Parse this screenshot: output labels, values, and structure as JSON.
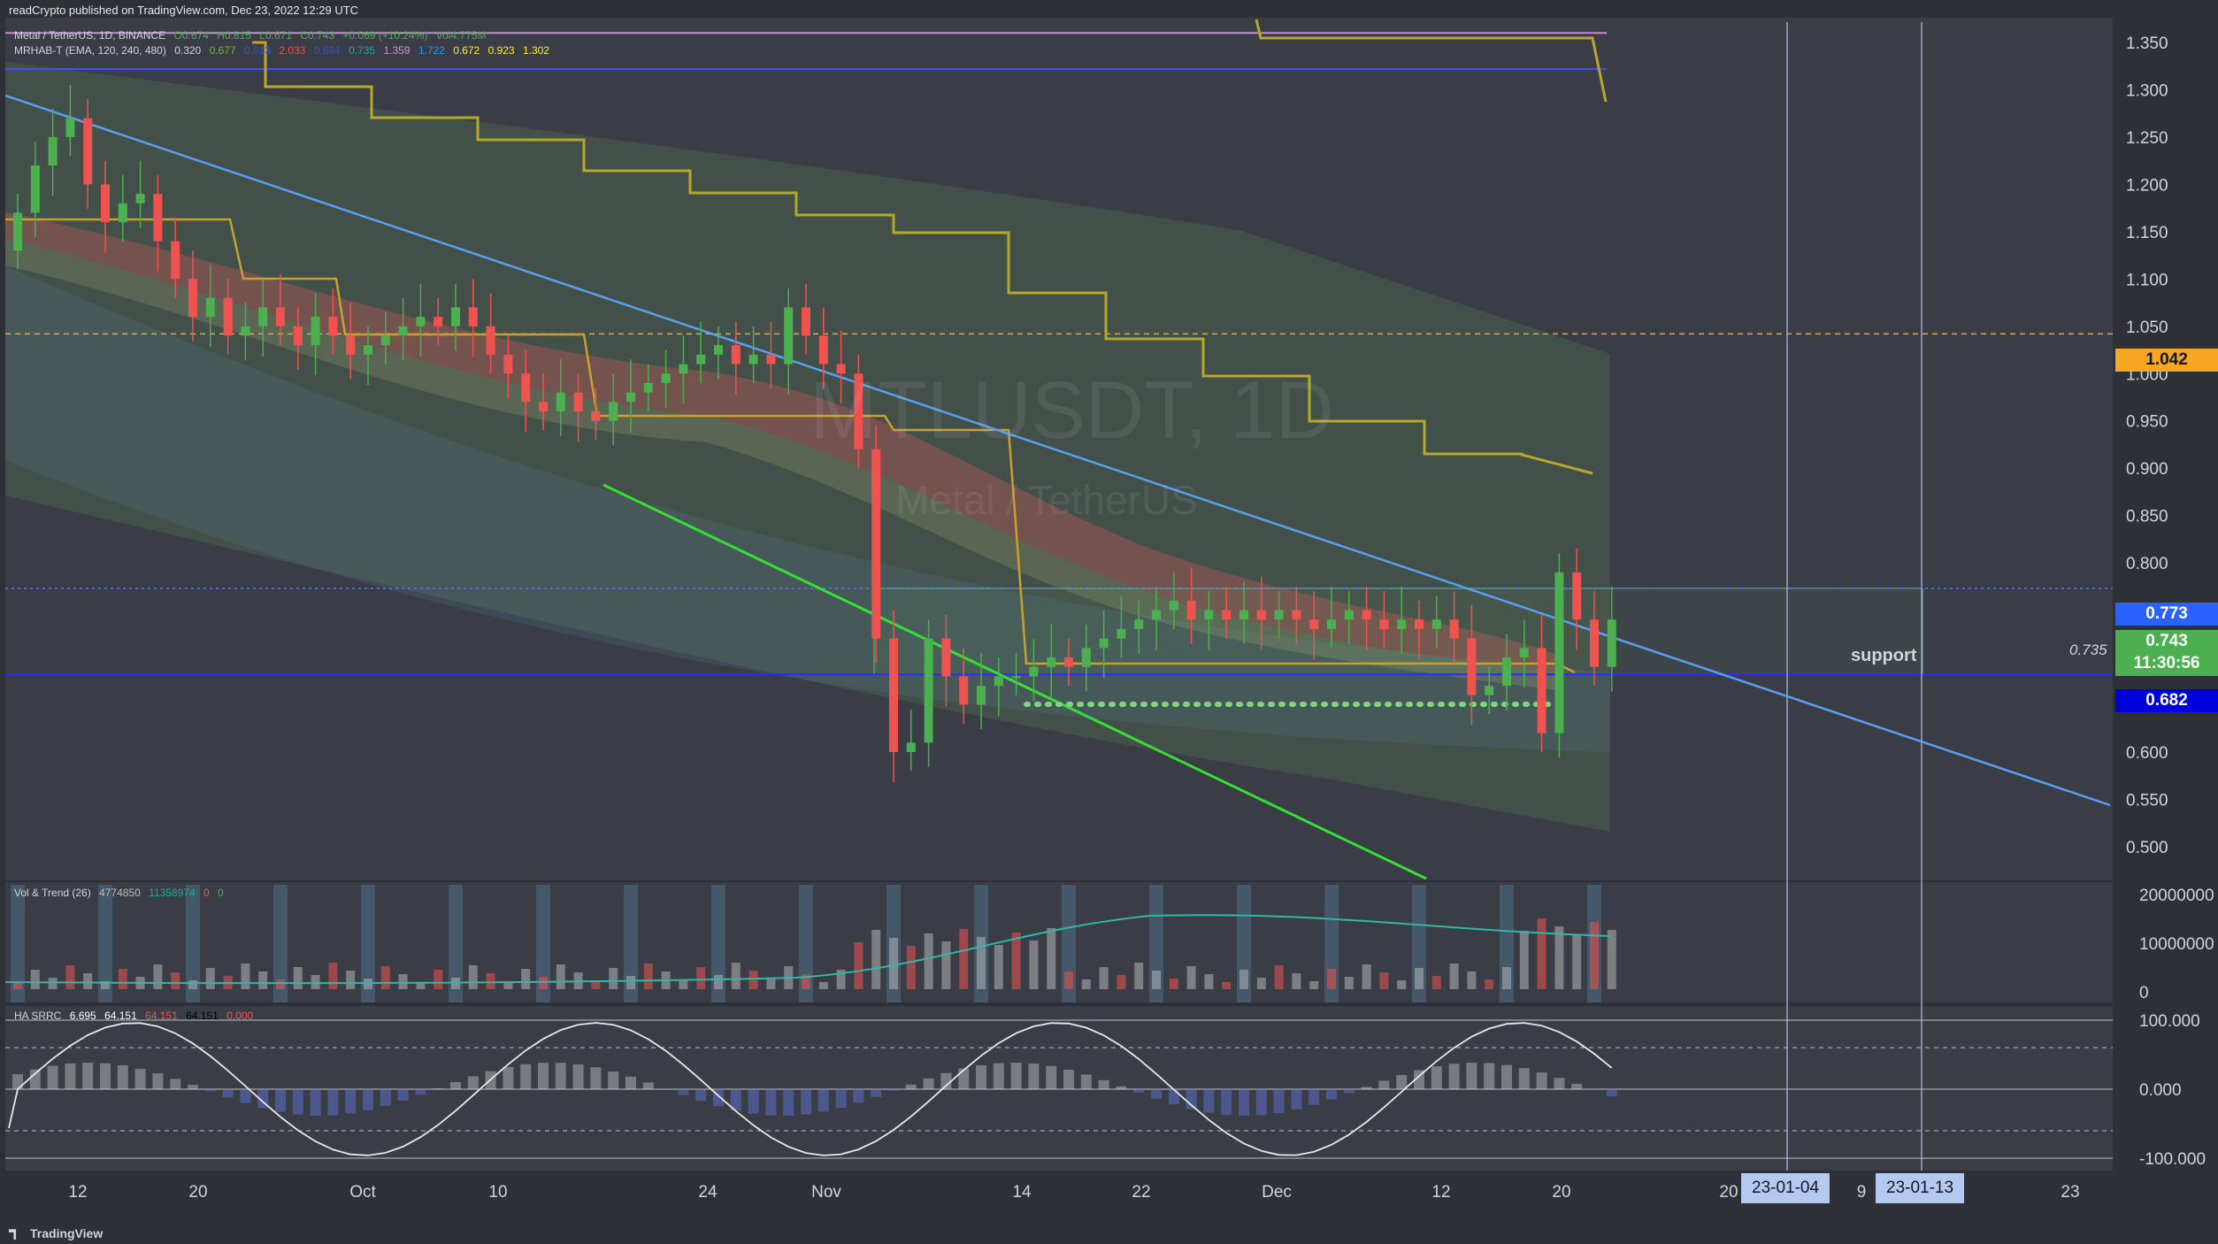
{
  "header": {
    "published_by": "readCrypto published on TradingView.com, Dec 23, 2022 12:29 UTC"
  },
  "symbol_line": {
    "name": "Metal / TetherUS, 1D, BINANCE",
    "open": "O0.674",
    "high": "H0.815",
    "low": "L0.671",
    "close": "C0.743",
    "change": "+0.069 (+10.24%)",
    "vol": "Vol4.775M"
  },
  "mrhab_line": {
    "name": "MRHAB-T (EMA, 120, 240, 480)",
    "values": [
      "0.320",
      "0.677",
      "0.813",
      "2.033",
      "0.694",
      "0.735",
      "1.359",
      "1.722",
      "0.672",
      "0.923",
      "1.302"
    ]
  },
  "watermark": {
    "symbol": "MTLUSDT, 1D",
    "description": "Metal / TetherUS"
  },
  "support_label": "support",
  "current_price": "0.743",
  "countdown": "11:30:56",
  "price_tags": [
    {
      "value": "1.042",
      "color": "#f5a623"
    },
    {
      "value": "0.773",
      "color": "#2962ff"
    },
    {
      "value": "0.682",
      "color": "#0000dd"
    }
  ],
  "annotation_value": "0.735",
  "main_axis": {
    "ticks": [
      "1.350",
      "1.300",
      "1.250",
      "1.200",
      "1.150",
      "1.100",
      "1.050",
      "1.000",
      "0.950",
      "0.900",
      "0.850",
      "0.800",
      "0.750",
      "0.700",
      "0.650",
      "0.600",
      "0.550",
      "0.500"
    ]
  },
  "volume_panel": {
    "label": "Vol & Trend (26)",
    "val1": "4774850",
    "val2": "11358974",
    "val3": "0",
    "val4": "0",
    "ticks": [
      "20000000",
      "10000000",
      "0"
    ]
  },
  "srrc_panel": {
    "label": "HA SRRC",
    "values": [
      "6.695",
      "64.151",
      "64.151",
      "64.151",
      "0.000"
    ],
    "ticks": [
      "100.000",
      "0.000",
      "-100.000"
    ]
  },
  "time_axis": {
    "labels": [
      "12",
      "20",
      "Oct",
      "10",
      "24",
      "Nov",
      "14",
      "22",
      "Dec",
      "12",
      "20",
      "20",
      "9",
      "23"
    ]
  },
  "date_tags": [
    "23-01-04",
    "23-01-13"
  ],
  "footer": "TradingView",
  "chart_data": {
    "type": "candlestick",
    "title": "MTLUSDT, 1D",
    "subtitle": "Metal / TetherUS",
    "ylim": [
      0.5,
      1.375
    ],
    "y_ticks": [
      1.35,
      1.3,
      1.25,
      1.2,
      1.15,
      1.1,
      1.05,
      1.0,
      0.95,
      0.9,
      0.85,
      0.8,
      0.75,
      0.7,
      0.65,
      0.6,
      0.55,
      0.5
    ],
    "x_labels": [
      "12",
      "20",
      "Oct",
      "10",
      "24",
      "Nov",
      "14",
      "22",
      "Dec",
      "12",
      "20",
      "20",
      "9",
      "23"
    ],
    "horizontal_levels": [
      1.36,
      1.322,
      1.042,
      0.773,
      0.682
    ],
    "support_zone": [
      0.682,
      0.773
    ],
    "candles_close_approx": [
      1.17,
      1.22,
      1.25,
      1.27,
      1.2,
      1.16,
      1.18,
      1.19,
      1.14,
      1.1,
      1.06,
      1.08,
      1.04,
      1.05,
      1.07,
      1.05,
      1.03,
      1.06,
      1.04,
      1.02,
      1.03,
      1.04,
      1.05,
      1.06,
      1.05,
      1.07,
      1.05,
      1.02,
      1.0,
      0.97,
      0.96,
      0.98,
      0.96,
      0.95,
      0.97,
      0.98,
      0.99,
      1.0,
      1.01,
      1.02,
      1.03,
      1.01,
      1.02,
      1.01,
      1.07,
      1.04,
      1.01,
      1.0,
      0.92,
      0.72,
      0.6,
      0.61,
      0.72,
      0.68,
      0.65,
      0.67,
      0.68,
      0.68,
      0.69,
      0.7,
      0.69,
      0.71,
      0.72,
      0.73,
      0.74,
      0.75,
      0.76,
      0.74,
      0.75,
      0.74,
      0.75,
      0.74,
      0.75,
      0.74,
      0.73,
      0.74,
      0.75,
      0.74,
      0.73,
      0.74,
      0.73,
      0.74,
      0.72,
      0.66,
      0.67,
      0.7,
      0.71,
      0.62,
      0.79,
      0.74,
      0.69,
      0.74
    ]
  }
}
